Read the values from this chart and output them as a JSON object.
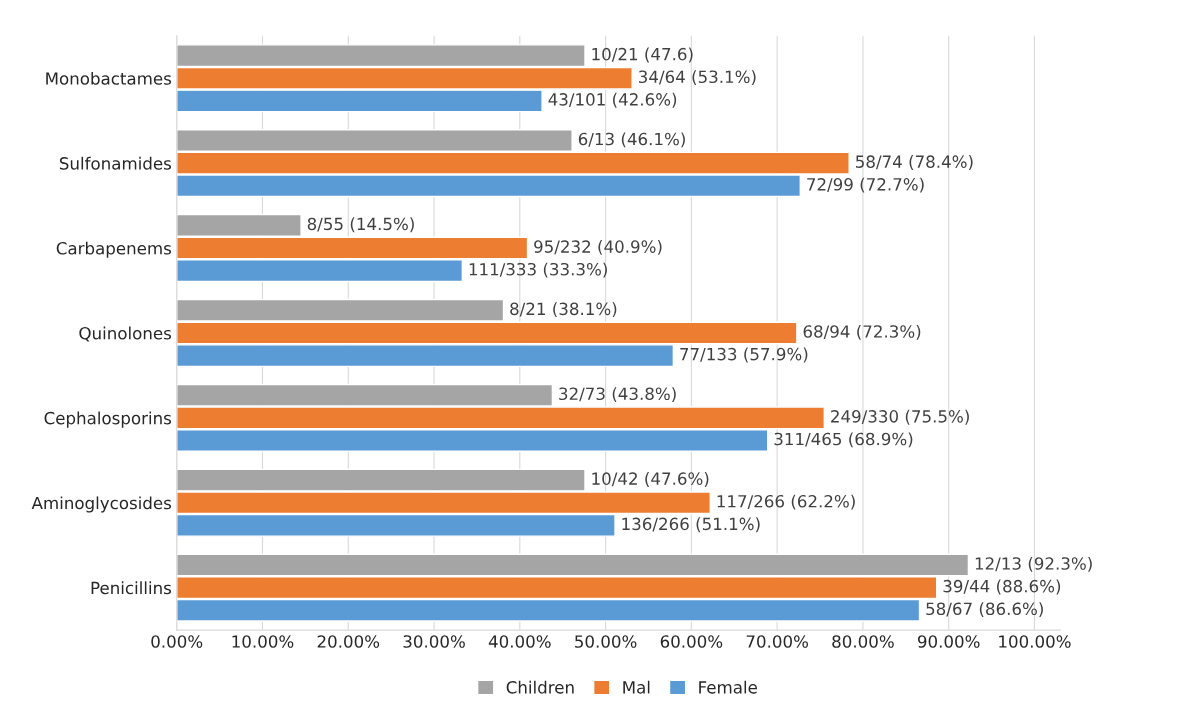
{
  "chart_data": {
    "type": "bar",
    "orientation": "horizontal",
    "categories": [
      "Monobactames",
      "Sulfonamides",
      "Carbapenems",
      "Quinolones",
      "Cephalosporins",
      "Aminoglycosides",
      "Penicillins"
    ],
    "series": [
      {
        "name": "Children",
        "color": "#a5a5a5",
        "values": [
          47.6,
          46.1,
          14.5,
          38.1,
          43.8,
          47.6,
          92.3
        ],
        "value_labels": [
          "10/21 (47.6)",
          "6/13 (46.1%)",
          "8/55 (14.5%)",
          "8/21 (38.1%)",
          "32/73 (43.8%)",
          "10/42 (47.6%)",
          "12/13 (92.3%)"
        ]
      },
      {
        "name": "Mal",
        "color": "#ed7d31",
        "values": [
          53.1,
          78.4,
          40.9,
          72.3,
          75.5,
          62.2,
          88.6
        ],
        "value_labels": [
          "34/64 (53.1%)",
          "58/74 (78.4%)",
          "95/232 (40.9%)",
          "68/94 (72.3%)",
          "249/330 (75.5%)",
          "117/266 (62.2%)",
          "39/44 (88.6%)"
        ]
      },
      {
        "name": "Female",
        "color": "#5b9bd5",
        "values": [
          42.6,
          72.7,
          33.3,
          57.9,
          68.9,
          51.1,
          86.6
        ],
        "value_labels": [
          "43/101 (42.6%)",
          "72/99 (72.7%)",
          "111/333 (33.3%)",
          "77/133 (57.9%)",
          "311/465 (68.9%)",
          "136/266 (51.1%)",
          "58/67 (86.6%)"
        ]
      }
    ],
    "xlim": [
      0,
      103
    ],
    "xticks": [
      {
        "value": 0,
        "label": "0.00%"
      },
      {
        "value": 10,
        "label": "10.00%"
      },
      {
        "value": 20,
        "label": "20.00%"
      },
      {
        "value": 30,
        "label": "30.00%"
      },
      {
        "value": 40,
        "label": "40.00%"
      },
      {
        "value": 50,
        "label": "50.00%"
      },
      {
        "value": 60,
        "label": "60.00%"
      },
      {
        "value": 70,
        "label": "70.00%"
      },
      {
        "value": 80,
        "label": "80.00%"
      },
      {
        "value": 90,
        "label": "90.00%"
      },
      {
        "value": 100,
        "label": "100.00%"
      }
    ],
    "grid": "x",
    "legend": "bottom"
  }
}
